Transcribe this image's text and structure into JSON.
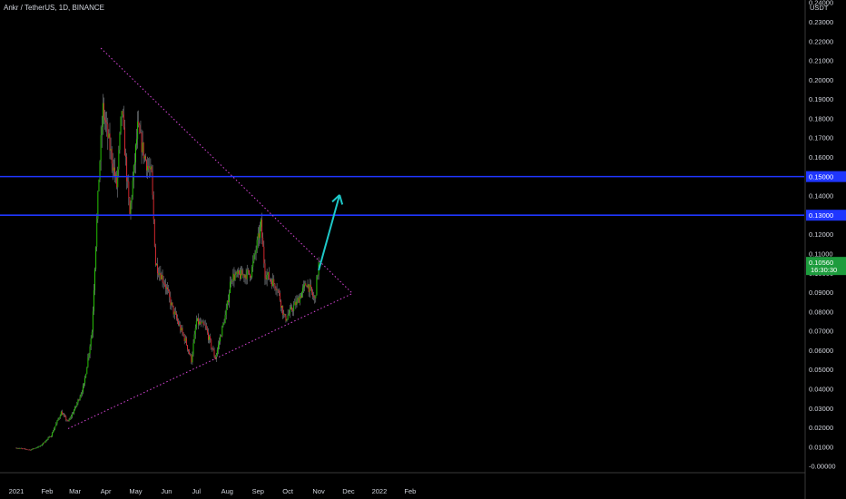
{
  "chart_data": {
    "type": "candlestick",
    "title": "Ankr / TetherUS, 1D, BINANCE",
    "currency_label": "USDT",
    "x_ticks": [
      "2021",
      "Feb",
      "Mar",
      "Apr",
      "May",
      "Jun",
      "Jul",
      "Aug",
      "Sep",
      "Oct",
      "Nov",
      "Dec",
      "2022",
      "Feb"
    ],
    "y_ticks": [
      "0.24000",
      "0.23000",
      "0.22000",
      "0.21000",
      "0.20000",
      "0.19000",
      "0.18000",
      "0.17000",
      "0.16000",
      "0.15000",
      "0.14000",
      "0.13000",
      "0.12000",
      "0.11000",
      "0.10000",
      "0.09000",
      "0.08000",
      "0.07000",
      "0.06000",
      "0.05000",
      "0.04000",
      "0.03000",
      "0.02000",
      "0.01000",
      "-0.00000"
    ],
    "y_range": [
      0.0,
      0.24
    ],
    "grid": false,
    "current_price": {
      "value": 0.1056,
      "label": "0.10560",
      "countdown": "16:30:30",
      "color": "#1d9c3d"
    },
    "horizontal_levels": [
      {
        "value": 0.15,
        "label": "0.15000",
        "color": "#1f36ff"
      },
      {
        "value": 0.13,
        "label": "0.13000",
        "color": "#1f36ff"
      }
    ],
    "trendlines": [
      {
        "name": "upper-trendline",
        "from": [
          "2021-03-27",
          0.2165
        ],
        "to": [
          "2021-12-05",
          0.0895
        ],
        "color": "#d946d9",
        "style": "dotted"
      },
      {
        "name": "lower-trendline",
        "from": [
          "2021-02-22",
          0.0195
        ],
        "to": [
          "2021-12-05",
          0.0895
        ],
        "color": "#d946d9",
        "style": "dotted"
      }
    ],
    "arrow": {
      "from": [
        "2021-11-01",
        0.1015
      ],
      "to": [
        "2021-11-22",
        0.1405
      ],
      "color": "#1ec8c8"
    },
    "candle_colors": {
      "up": "#26d400",
      "down": "#e6272e"
    },
    "price_path": [
      [
        "2021-01-01",
        0.0095
      ],
      [
        "2021-01-15",
        0.0085
      ],
      [
        "2021-01-25",
        0.0105
      ],
      [
        "2021-02-05",
        0.016
      ],
      [
        "2021-02-15",
        0.028
      ],
      [
        "2021-02-22",
        0.023
      ],
      [
        "2021-03-01",
        0.03
      ],
      [
        "2021-03-10",
        0.042
      ],
      [
        "2021-03-18",
        0.07
      ],
      [
        "2021-03-25",
        0.15
      ],
      [
        "2021-03-29",
        0.185
      ],
      [
        "2021-04-05",
        0.165
      ],
      [
        "2021-04-12",
        0.145
      ],
      [
        "2021-04-17",
        0.185
      ],
      [
        "2021-04-25",
        0.13
      ],
      [
        "2021-05-03",
        0.175
      ],
      [
        "2021-05-10",
        0.16
      ],
      [
        "2021-05-17",
        0.15
      ],
      [
        "2021-05-21",
        0.105
      ],
      [
        "2021-05-30",
        0.095
      ],
      [
        "2021-06-08",
        0.08
      ],
      [
        "2021-06-20",
        0.065
      ],
      [
        "2021-06-26",
        0.055
      ],
      [
        "2021-07-01",
        0.075
      ],
      [
        "2021-07-10",
        0.072
      ],
      [
        "2021-07-20",
        0.056
      ],
      [
        "2021-07-31",
        0.08
      ],
      [
        "2021-08-05",
        0.098
      ],
      [
        "2021-08-15",
        0.099
      ],
      [
        "2021-08-25",
        0.1
      ],
      [
        "2021-09-04",
        0.125
      ],
      [
        "2021-09-08",
        0.1
      ],
      [
        "2021-09-20",
        0.093
      ],
      [
        "2021-09-28",
        0.076
      ],
      [
        "2021-10-10",
        0.085
      ],
      [
        "2021-10-20",
        0.095
      ],
      [
        "2021-10-28",
        0.086
      ],
      [
        "2021-11-01",
        0.1056
      ]
    ]
  }
}
